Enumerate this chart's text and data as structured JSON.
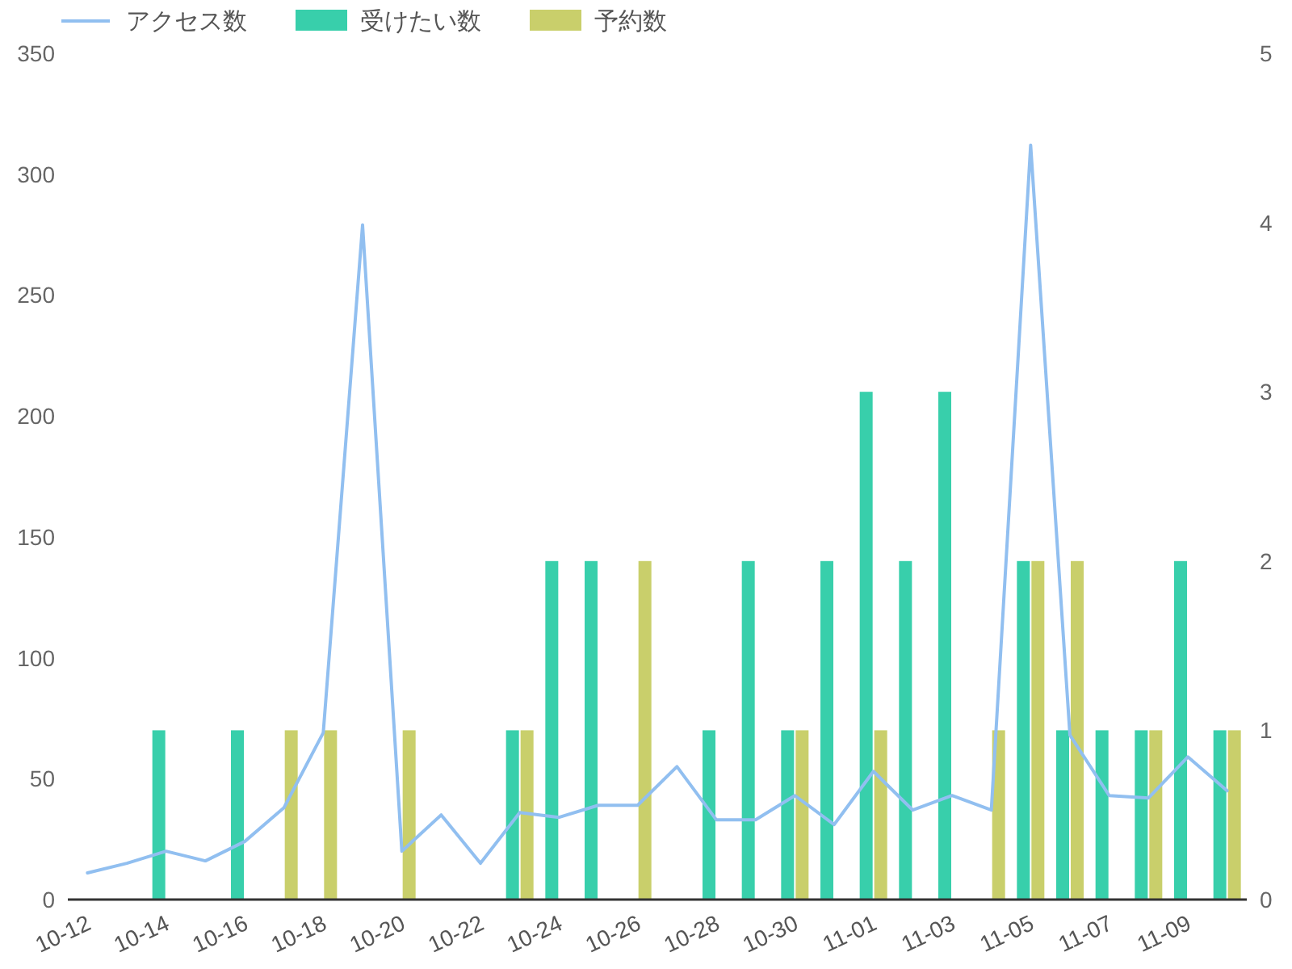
{
  "chart_data": {
    "type": "bar",
    "categories": [
      "10-12",
      null,
      "10-14",
      null,
      "10-16",
      null,
      "10-18",
      null,
      "10-20",
      null,
      "10-22",
      null,
      "10-24",
      null,
      "10-26",
      null,
      "10-28",
      null,
      "10-30",
      null,
      "11-01",
      null,
      "11-03",
      null,
      "11-05",
      null,
      "11-07",
      null,
      "11-09",
      null
    ],
    "series": [
      {
        "name": "アクセス数",
        "type": "line",
        "color": "#91bff0",
        "values": [
          11,
          15,
          20,
          16,
          24,
          38,
          69,
          279,
          20,
          35,
          15,
          36,
          34,
          39,
          39,
          55,
          33,
          33,
          43,
          31,
          53,
          37,
          43,
          37,
          312,
          68,
          43,
          42,
          59,
          45
        ]
      },
      {
        "name": "受けたい数",
        "color": "#38cfab",
        "axis": "y2",
        "values": [
          0,
          0,
          1,
          0,
          1,
          0,
          0,
          0,
          0,
          0,
          0,
          1,
          2,
          2,
          0,
          0,
          1,
          2,
          1,
          2,
          3,
          2,
          3,
          0,
          2,
          1,
          1,
          1,
          2,
          1
        ]
      },
      {
        "name": "予約数",
        "color": "#c9cf6b",
        "axis": "y2",
        "values": [
          0,
          0,
          0,
          0,
          0,
          1,
          1,
          0,
          1,
          0,
          0,
          1,
          0,
          0,
          2,
          0,
          0,
          0,
          1,
          0,
          1,
          0,
          0,
          1,
          2,
          2,
          0,
          1,
          0,
          1
        ]
      }
    ],
    "ylim": [
      0,
      350
    ],
    "yticks": [
      0,
      50,
      100,
      150,
      200,
      250,
      300,
      350
    ],
    "y2lim": [
      0,
      5
    ],
    "y2ticks": [
      0,
      1,
      2,
      3,
      4,
      5
    ],
    "legend": "top left"
  }
}
